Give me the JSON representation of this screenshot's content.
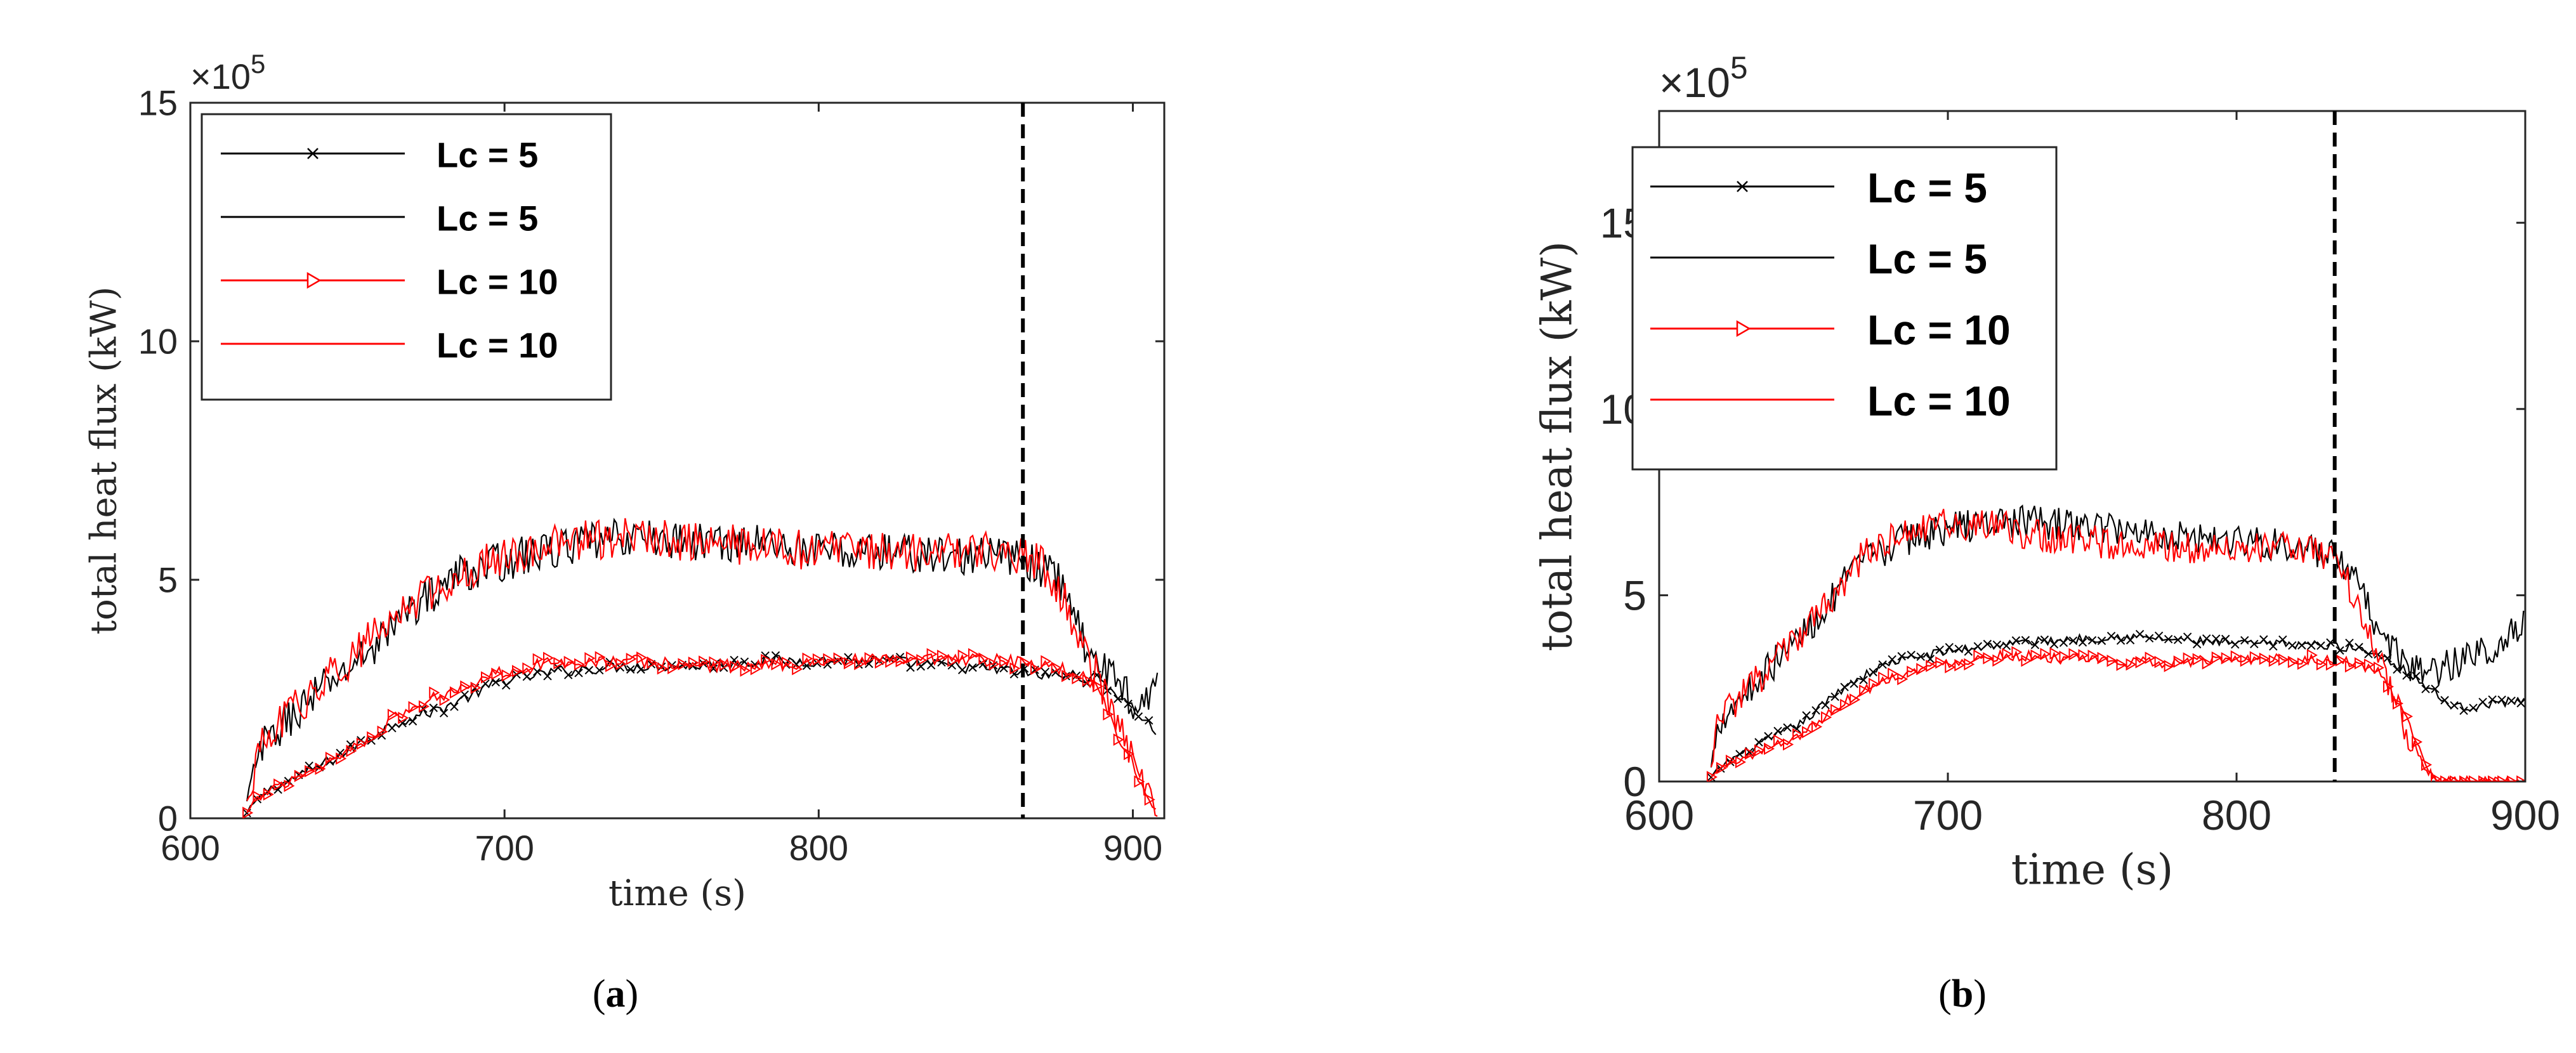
{
  "captions": [
    {
      "open": "(",
      "letter": "a",
      "close": ")"
    },
    {
      "open": "(",
      "letter": "b",
      "close": ")"
    }
  ],
  "chart_data": [
    {
      "type": "line",
      "panel": "a",
      "title": "",
      "xlabel": "time (s)",
      "ylabel": "total heat flux (kW)",
      "xlim": [
        600,
        910
      ],
      "ylim": [
        0,
        15
      ],
      "y_multiplier": "×10",
      "y_multiplier_exp": "5",
      "xticks": [
        600,
        700,
        800,
        900
      ],
      "yticks": [
        0,
        5,
        10,
        15
      ],
      "grid": false,
      "legend_position": "top-left",
      "vline": 865,
      "series": [
        {
          "name": "Lc = 5",
          "color": "#000000",
          "marker": "x",
          "noise": 0.12,
          "x": [
            618,
            620,
            625,
            635,
            650,
            665,
            680,
            700,
            720,
            740,
            760,
            780,
            800,
            820,
            840,
            860,
            870,
            880,
            890,
            895,
            900,
            905,
            908
          ],
          "y": [
            0.1,
            0.3,
            0.6,
            0.9,
            1.4,
            2.0,
            2.3,
            2.9,
            3.1,
            3.2,
            3.2,
            3.3,
            3.3,
            3.3,
            3.2,
            3.1,
            3.0,
            3.0,
            2.9,
            2.6,
            2.3,
            2.0,
            1.7
          ]
        },
        {
          "name": "Lc = 5",
          "color": "#000000",
          "marker": "",
          "noise": 0.42,
          "x": [
            618,
            622,
            630,
            640,
            655,
            670,
            685,
            700,
            720,
            740,
            760,
            780,
            800,
            820,
            840,
            860,
            870,
            878,
            885,
            890,
            895,
            900,
            905,
            908
          ],
          "y": [
            0.3,
            1.4,
            2.0,
            2.6,
            3.4,
            4.4,
            5.1,
            5.4,
            5.7,
            5.9,
            5.8,
            5.8,
            5.6,
            5.6,
            5.5,
            5.5,
            5.3,
            4.9,
            3.6,
            3.2,
            2.8,
            2.5,
            2.6,
            2.8
          ]
        },
        {
          "name": "Lc = 10",
          "color": "#ff0000",
          "marker": "triangle-right",
          "noise": 0.14,
          "x": [
            618,
            620,
            625,
            635,
            650,
            665,
            680,
            700,
            720,
            740,
            760,
            780,
            800,
            820,
            840,
            860,
            870,
            880,
            885,
            890,
            895,
            900,
            905,
            908
          ],
          "y": [
            0.1,
            0.3,
            0.6,
            0.9,
            1.4,
            2.1,
            2.6,
            3.1,
            3.3,
            3.3,
            3.2,
            3.2,
            3.3,
            3.3,
            3.3,
            3.3,
            3.2,
            3.1,
            3.0,
            2.6,
            1.8,
            1.1,
            0.4,
            0.1
          ]
        },
        {
          "name": "Lc = 10",
          "color": "#ff0000",
          "marker": "",
          "noise": 0.42,
          "x": [
            618,
            622,
            630,
            640,
            655,
            670,
            685,
            700,
            720,
            740,
            760,
            780,
            800,
            820,
            840,
            860,
            870,
            878,
            885,
            890,
            895,
            900,
            905,
            908
          ],
          "y": [
            0.3,
            1.4,
            2.1,
            2.7,
            3.6,
            4.5,
            5.1,
            5.5,
            5.8,
            5.9,
            5.8,
            5.7,
            5.6,
            5.6,
            5.6,
            5.6,
            5.4,
            4.6,
            3.4,
            2.8,
            2.0,
            1.2,
            0.5,
            0.1
          ]
        }
      ]
    },
    {
      "type": "line",
      "panel": "b",
      "title": "",
      "xlabel": "time (s)",
      "ylabel": "total heat flux (kW)",
      "xlim": [
        600,
        900
      ],
      "ylim": [
        0,
        18
      ],
      "y_multiplier": "×10",
      "y_multiplier_exp": "5",
      "xticks": [
        600,
        700,
        800,
        900
      ],
      "yticks": [
        0,
        5,
        10,
        15
      ],
      "grid": false,
      "legend_position": "top-left",
      "vline": 834,
      "series": [
        {
          "name": "Lc = 5",
          "color": "#000000",
          "marker": "x",
          "noise": 0.12,
          "x": [
            618,
            620,
            625,
            635,
            650,
            665,
            680,
            700,
            720,
            740,
            760,
            780,
            800,
            820,
            840,
            850,
            860,
            870,
            875,
            880,
            890,
            900
          ],
          "y": [
            0.1,
            0.3,
            0.6,
            1.0,
            1.6,
            2.6,
            3.2,
            3.5,
            3.7,
            3.8,
            3.9,
            3.8,
            3.7,
            3.7,
            3.6,
            3.4,
            2.9,
            2.3,
            2.0,
            2.0,
            2.1,
            2.2
          ]
        },
        {
          "name": "Lc = 5",
          "color": "#000000",
          "marker": "",
          "noise": 0.45,
          "x": [
            618,
            620,
            630,
            640,
            655,
            670,
            685,
            700,
            720,
            740,
            760,
            780,
            800,
            820,
            834,
            840,
            850,
            860,
            870,
            880,
            890,
            900
          ],
          "y": [
            0.3,
            1.6,
            2.4,
            3.2,
            4.4,
            5.9,
            6.5,
            6.8,
            7.0,
            6.9,
            6.8,
            6.6,
            6.5,
            6.3,
            6.0,
            5.5,
            4.0,
            3.0,
            3.0,
            3.3,
            3.7,
            4.2
          ]
        },
        {
          "name": "Lc = 10",
          "color": "#ff0000",
          "marker": "triangle-right",
          "noise": 0.14,
          "x": [
            618,
            620,
            625,
            635,
            650,
            665,
            680,
            700,
            720,
            740,
            760,
            780,
            800,
            820,
            840,
            850,
            860,
            866,
            870,
            880,
            890,
            900
          ],
          "y": [
            0.1,
            0.3,
            0.5,
            0.8,
            1.3,
            2.2,
            2.8,
            3.2,
            3.4,
            3.3,
            3.2,
            3.2,
            3.3,
            3.3,
            3.2,
            2.9,
            1.5,
            0.3,
            0.0,
            0.0,
            0.0,
            0.0
          ]
        },
        {
          "name": "Lc = 10",
          "color": "#ff0000",
          "marker": "",
          "noise": 0.45,
          "x": [
            618,
            620,
            630,
            640,
            655,
            670,
            685,
            700,
            720,
            740,
            760,
            780,
            800,
            820,
            834,
            845,
            855,
            862,
            866,
            870,
            880,
            890,
            900
          ],
          "y": [
            0.3,
            1.6,
            2.4,
            3.2,
            4.4,
            6.0,
            6.7,
            6.9,
            6.8,
            6.5,
            6.4,
            6.3,
            6.3,
            6.3,
            6.1,
            4.2,
            2.2,
            0.8,
            0.2,
            0.0,
            0.0,
            0.0,
            0.0
          ]
        }
      ]
    }
  ]
}
